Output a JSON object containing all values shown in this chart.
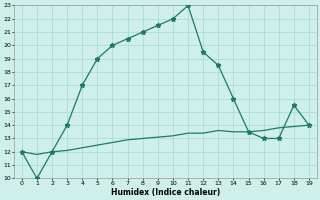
{
  "xlabel": "Humidex (Indice chaleur)",
  "background_color": "#cff0ea",
  "grid_color": "#aaddd6",
  "line_color": "#1a7a6e",
  "x_line1": [
    0,
    1,
    2,
    3,
    4,
    5,
    6,
    7,
    8,
    9,
    10,
    11,
    12,
    13,
    14,
    15,
    16,
    17,
    18,
    19
  ],
  "y_line1": [
    12,
    10,
    12,
    14,
    17,
    19,
    20,
    20.5,
    21,
    21.5,
    22,
    23,
    19.5,
    18.5,
    16,
    13.5,
    13,
    13,
    15.5,
    14
  ],
  "x_line2": [
    0,
    1,
    2,
    3,
    4,
    5,
    6,
    7,
    8,
    9,
    10,
    11,
    12,
    13,
    14,
    15,
    16,
    17,
    18,
    19
  ],
  "y_line2": [
    12,
    11.8,
    12,
    12.1,
    12.3,
    12.5,
    12.7,
    12.9,
    13.0,
    13.1,
    13.2,
    13.4,
    13.4,
    13.6,
    13.5,
    13.5,
    13.6,
    13.8,
    13.9,
    14.0
  ],
  "ylim": [
    10,
    23
  ],
  "xlim": [
    -0.5,
    19.5
  ],
  "yticks": [
    10,
    11,
    12,
    13,
    14,
    15,
    16,
    17,
    18,
    19,
    20,
    21,
    22,
    23
  ],
  "xticks": [
    0,
    1,
    2,
    3,
    4,
    5,
    6,
    7,
    8,
    9,
    10,
    11,
    12,
    13,
    14,
    15,
    16,
    17,
    18,
    19
  ]
}
